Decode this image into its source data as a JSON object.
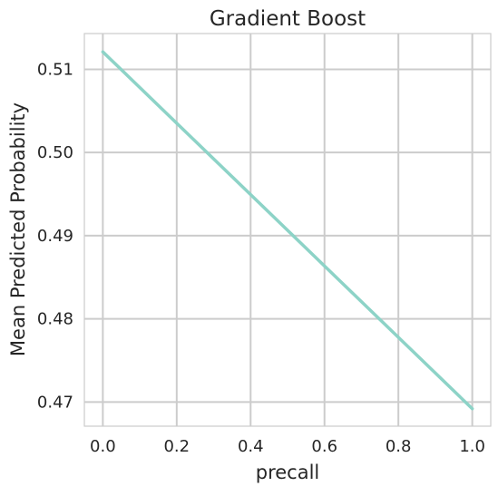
{
  "chart_data": {
    "type": "line",
    "title": "Gradient Boost",
    "xlabel": "precall",
    "ylabel": "Mean Predicted Probability",
    "xlim": [
      -0.05,
      1.05
    ],
    "ylim": [
      0.4671,
      0.5143
    ],
    "x_ticks": [
      0.0,
      0.2,
      0.4,
      0.6,
      0.8,
      1.0
    ],
    "x_tick_labels": [
      "0.0",
      "0.2",
      "0.4",
      "0.6",
      "0.8",
      "1.0"
    ],
    "y_ticks": [
      0.47,
      0.48,
      0.49,
      0.5,
      0.51
    ],
    "y_tick_labels": [
      "0.47",
      "0.48",
      "0.49",
      "0.50",
      "0.51"
    ],
    "grid": true,
    "series": [
      {
        "color": "#8dd3c7",
        "x": [
          0.0,
          1.0
        ],
        "y": [
          0.5121,
          0.4692
        ]
      }
    ]
  }
}
